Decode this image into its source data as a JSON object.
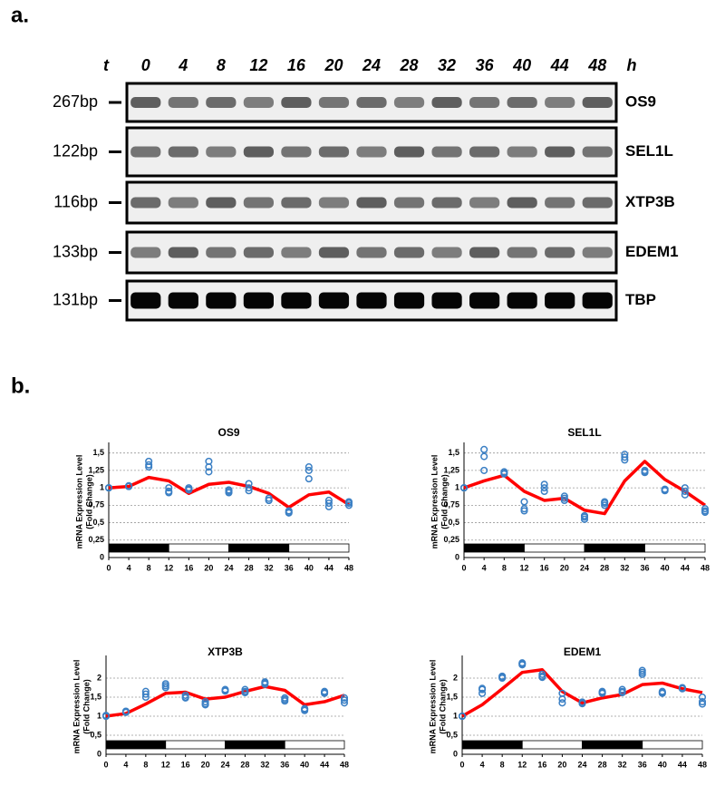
{
  "panel_labels": [
    "a.",
    "b."
  ],
  "gel": {
    "time_label": "t",
    "unit": "h",
    "times": [
      "0",
      "4",
      "8",
      "12",
      "16",
      "20",
      "24",
      "28",
      "32",
      "36",
      "40",
      "44",
      "48"
    ],
    "rows": [
      {
        "size": "267bp",
        "gene": "OS9"
      },
      {
        "size": "122bp",
        "gene": "SEL1L"
      },
      {
        "size": "116bp",
        "gene": "XTP3B"
      },
      {
        "size": "133bp",
        "gene": "EDEM1"
      },
      {
        "size": "131bp",
        "gene": "TBP"
      }
    ]
  },
  "chart_data": [
    {
      "type": "line",
      "title": "OS9",
      "ylabel": [
        "mRNA Expression Level",
        "(Fold Change)"
      ],
      "x": [
        0,
        4,
        8,
        12,
        16,
        20,
        24,
        28,
        32,
        36,
        40,
        44,
        48
      ],
      "series": [
        {
          "color": "#ff0000",
          "values": [
            1.0,
            1.02,
            1.15,
            1.1,
            0.92,
            1.05,
            1.08,
            1.02,
            0.92,
            0.72,
            0.9,
            0.94,
            0.76
          ]
        }
      ],
      "replicates": {
        "color": "#3a7fc4",
        "values": [
          [
            1,
            1,
            1
          ],
          [
            1.03,
            1.02,
            1.02
          ],
          [
            1.38,
            1.33,
            1.3
          ],
          [
            1,
            0.95,
            0.93
          ],
          [
            1,
            0.98,
            0.97
          ],
          [
            1.38,
            1.3,
            1.23
          ],
          [
            0.97,
            0.95,
            0.93
          ],
          [
            1.06,
            1.0,
            0.96
          ],
          [
            0.85,
            0.82,
            0.82
          ],
          [
            0.67,
            0.65,
            0.64
          ],
          [
            1.3,
            1.25,
            1.13
          ],
          [
            0.82,
            0.78,
            0.73
          ],
          [
            0.8,
            0.78,
            0.75
          ]
        ]
      },
      "periods": [
        {
          "start": 0,
          "end": 12,
          "color": "#000000"
        },
        {
          "start": 12,
          "end": 24,
          "color": "#ffffff"
        },
        {
          "start": 24,
          "end": 36,
          "color": "#000000"
        },
        {
          "start": 36,
          "end": 48,
          "color": "#ffffff"
        }
      ],
      "xlim": [
        0,
        48
      ],
      "xticks": [
        0,
        4,
        8,
        12,
        16,
        20,
        24,
        28,
        32,
        36,
        40,
        44,
        48
      ],
      "ylim": [
        0,
        1.6
      ],
      "yticks": [
        0,
        {
          "value": 0.25,
          "label": "0,25"
        },
        {
          "value": 0.5,
          "label": "0,5"
        },
        {
          "value": 0.75,
          "label": "0,75"
        },
        1,
        {
          "value": 1.25,
          "label": "1,25"
        },
        {
          "value": 1.5,
          "label": "1,5"
        }
      ],
      "grid": true
    },
    {
      "type": "line",
      "title": "SEL1L",
      "ylabel": [
        "mRNA Expression Level",
        "(Fold Change)"
      ],
      "x": [
        0,
        4,
        8,
        12,
        16,
        20,
        24,
        28,
        32,
        36,
        40,
        44,
        48
      ],
      "series": [
        {
          "color": "#ff0000",
          "values": [
            1.0,
            1.1,
            1.18,
            0.95,
            0.82,
            0.85,
            0.68,
            0.63,
            1.1,
            1.38,
            1.12,
            0.95,
            0.75
          ]
        }
      ],
      "replicates": {
        "color": "#3a7fc4",
        "values": [
          [
            1,
            1,
            1
          ],
          [
            1.55,
            1.45,
            1.25
          ],
          [
            1.23,
            1.22,
            1.2
          ],
          [
            0.8,
            0.7,
            0.67
          ],
          [
            1.05,
            1,
            0.95
          ],
          [
            0.88,
            0.85,
            0.82
          ],
          [
            0.6,
            0.58,
            0.55
          ],
          [
            0.8,
            0.78,
            0.75
          ],
          [
            1.48,
            1.44,
            1.4
          ],
          [
            1.25,
            1.23,
            1.22
          ],
          [
            0.98,
            0.97,
            0.96
          ],
          [
            1,
            0.95,
            0.9
          ],
          [
            0.7,
            0.67,
            0.65
          ]
        ]
      },
      "periods": [
        {
          "start": 0,
          "end": 12,
          "color": "#000000"
        },
        {
          "start": 12,
          "end": 24,
          "color": "#ffffff"
        },
        {
          "start": 24,
          "end": 36,
          "color": "#000000"
        },
        {
          "start": 36,
          "end": 48,
          "color": "#ffffff"
        }
      ],
      "xlim": [
        0,
        48
      ],
      "xticks": [
        0,
        4,
        8,
        12,
        16,
        20,
        24,
        28,
        32,
        36,
        40,
        44,
        48
      ],
      "ylim": [
        0,
        1.6
      ],
      "yticks": [
        0,
        {
          "value": 0.25,
          "label": "0,25"
        },
        {
          "value": 0.5,
          "label": "0,5"
        },
        {
          "value": 0.75,
          "label": "0,75"
        },
        1,
        {
          "value": 1.25,
          "label": "1,25"
        },
        {
          "value": 1.5,
          "label": "1,5"
        }
      ],
      "grid": true
    },
    {
      "type": "line",
      "title": "XTP3B",
      "ylabel": [
        "mRNA Expression Level",
        "(Fold Change)"
      ],
      "x": [
        0,
        4,
        8,
        12,
        16,
        20,
        24,
        28,
        32,
        36,
        40,
        44,
        48
      ],
      "series": [
        {
          "color": "#ff0000",
          "values": [
            1.0,
            1.07,
            1.32,
            1.6,
            1.63,
            1.45,
            1.5,
            1.65,
            1.78,
            1.68,
            1.3,
            1.38,
            1.55
          ]
        }
      ],
      "replicates": {
        "color": "#3a7fc4",
        "values": [
          [
            1.02,
            1,
            1
          ],
          [
            1.13,
            1.12,
            1.1
          ],
          [
            1.65,
            1.58,
            1.5
          ],
          [
            1.85,
            1.8,
            1.75
          ],
          [
            1.55,
            1.5,
            1.48
          ],
          [
            1.38,
            1.33,
            1.3
          ],
          [
            1.7,
            1.68,
            1.66
          ],
          [
            1.7,
            1.65,
            1.62
          ],
          [
            1.9,
            1.87,
            1.84
          ],
          [
            1.48,
            1.44,
            1.4
          ],
          [
            1.2,
            1.18,
            1.15
          ],
          [
            1.65,
            1.62,
            1.6
          ],
          [
            1.48,
            1.42,
            1.35
          ]
        ]
      },
      "periods": [
        {
          "start": 0,
          "end": 12,
          "color": "#000000"
        },
        {
          "start": 12,
          "end": 24,
          "color": "#ffffff"
        },
        {
          "start": 24,
          "end": 36,
          "color": "#000000"
        },
        {
          "start": 36,
          "end": 48,
          "color": "#ffffff"
        }
      ],
      "xlim": [
        0,
        48
      ],
      "xticks": [
        0,
        4,
        8,
        12,
        16,
        20,
        24,
        28,
        32,
        36,
        40,
        44,
        48
      ],
      "ylim": [
        0,
        2.5
      ],
      "yticks": [
        0,
        {
          "value": 0.5,
          "label": "0,5"
        },
        1,
        {
          "value": 1.5,
          "label": "1,5"
        },
        2
      ],
      "grid": true
    },
    {
      "type": "line",
      "title": "EDEM1",
      "ylabel": [
        "mRNA Expression Level",
        "(Fold Change)"
      ],
      "x": [
        0,
        4,
        8,
        12,
        16,
        20,
        24,
        28,
        32,
        36,
        40,
        44,
        48
      ],
      "series": [
        {
          "color": "#ff0000",
          "values": [
            1.0,
            1.3,
            1.72,
            2.15,
            2.22,
            1.65,
            1.35,
            1.48,
            1.57,
            1.83,
            1.87,
            1.72,
            1.62
          ]
        }
      ],
      "replicates": {
        "color": "#3a7fc4",
        "values": [
          [
            1,
            1,
            1
          ],
          [
            1.73,
            1.7,
            1.6
          ],
          [
            2.05,
            2.02,
            2.0
          ],
          [
            2.4,
            2.38,
            2.35
          ],
          [
            2.1,
            2.05,
            2.02
          ],
          [
            1.6,
            1.45,
            1.35
          ],
          [
            1.37,
            1.35,
            1.33
          ],
          [
            1.65,
            1.62,
            1.6
          ],
          [
            1.7,
            1.65,
            1.62
          ],
          [
            2.2,
            2.15,
            2.1
          ],
          [
            1.65,
            1.62,
            1.6
          ],
          [
            1.75,
            1.73,
            1.72
          ],
          [
            1.5,
            1.38,
            1.32
          ]
        ]
      },
      "periods": [
        {
          "start": 0,
          "end": 12,
          "color": "#000000"
        },
        {
          "start": 12,
          "end": 24,
          "color": "#ffffff"
        },
        {
          "start": 24,
          "end": 36,
          "color": "#000000"
        },
        {
          "start": 36,
          "end": 48,
          "color": "#ffffff"
        }
      ],
      "xlim": [
        0,
        48
      ],
      "xticks": [
        0,
        4,
        8,
        12,
        16,
        20,
        24,
        28,
        32,
        36,
        40,
        44,
        48
      ],
      "ylim": [
        0,
        2.5
      ],
      "yticks": [
        0,
        {
          "value": 0.5,
          "label": "0,5"
        },
        1,
        {
          "value": 1.5,
          "label": "1,5"
        },
        2
      ],
      "grid": true
    }
  ]
}
